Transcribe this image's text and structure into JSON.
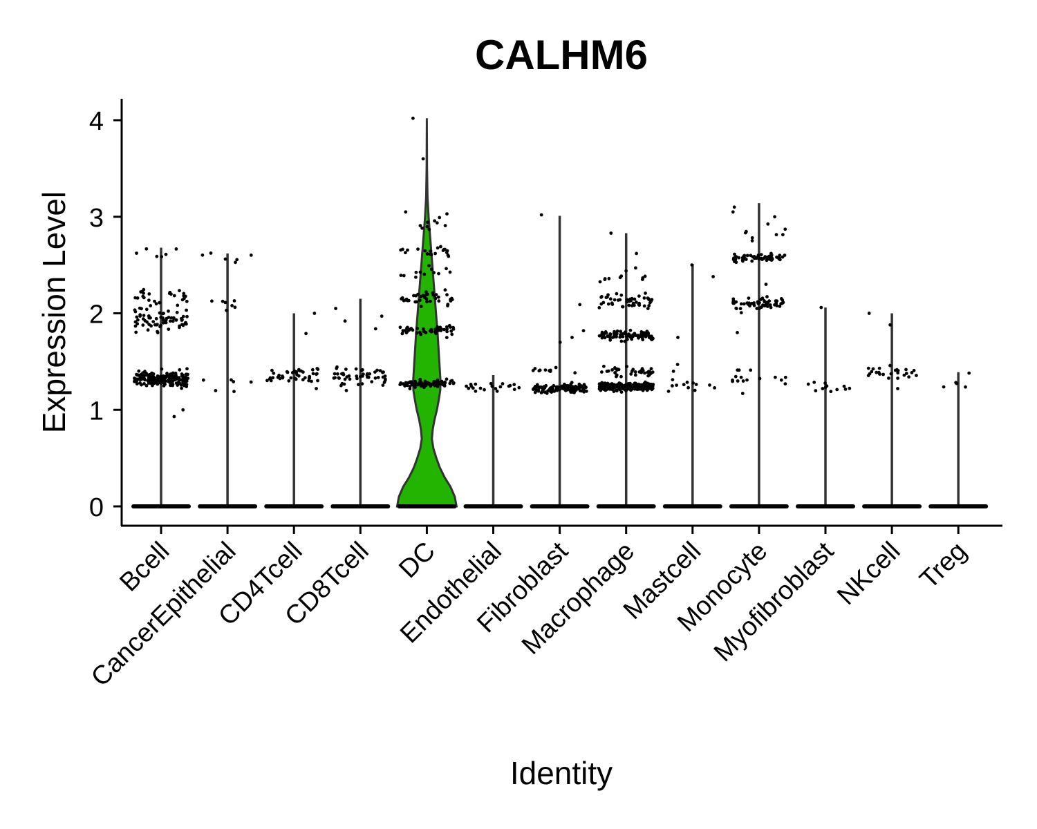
{
  "chart_data": {
    "type": "violin",
    "title": "CALHM6",
    "xlabel": "Identity",
    "ylabel": "Expression Level",
    "ylim": [
      -0.2,
      4.2
    ],
    "yticks": [
      0,
      1,
      2,
      3,
      4
    ],
    "legend": "none",
    "grid": false,
    "categories": [
      "Bcell",
      "CancerEpithelial",
      "CD4Tcell",
      "CD8Tcell",
      "DC",
      "Endothelial",
      "Fibroblast",
      "Macrophage",
      "Mastcell",
      "Monocyte",
      "Myofibroblast",
      "NKcell",
      "Treg"
    ],
    "series": [
      {
        "category": "Bcell",
        "max": 2.68,
        "fill": "#ffffff",
        "clusters": [
          {
            "center": 1.32,
            "spread": 0.08,
            "n": 200
          },
          {
            "center": 1.93,
            "spread": 0.12,
            "n": 70
          },
          {
            "center": 2.2,
            "spread": 0.1,
            "n": 25
          },
          {
            "center": 2.6,
            "spread": 0.08,
            "n": 6
          }
        ],
        "outliers": [
          1.0,
          0.93
        ]
      },
      {
        "category": "CancerEpithelial",
        "max": 2.62,
        "fill": "#ffffff",
        "clusters": [
          {
            "center": 1.3,
            "spread": 0.1,
            "n": 5
          },
          {
            "center": 2.12,
            "spread": 0.08,
            "n": 6
          },
          {
            "center": 2.58,
            "spread": 0.05,
            "n": 6
          }
        ],
        "outliers": [
          1.19,
          2.03
        ]
      },
      {
        "category": "CD4Tcell",
        "max": 2.0,
        "fill": "#ffffff",
        "clusters": [
          {
            "center": 1.35,
            "spread": 0.09,
            "n": 45
          }
        ],
        "outliers": [
          1.79,
          2.0
        ]
      },
      {
        "category": "CD8Tcell",
        "max": 2.15,
        "fill": "#ffffff",
        "clusters": [
          {
            "center": 1.35,
            "spread": 0.09,
            "n": 50
          }
        ],
        "outliers": [
          1.92,
          1.97,
          1.84,
          2.05
        ]
      },
      {
        "category": "DC",
        "max": 4.02,
        "fill": "#22b400",
        "clusters": [
          {
            "center": 1.27,
            "spread": 0.04,
            "n": 80
          },
          {
            "center": 1.82,
            "spread": 0.05,
            "n": 55
          },
          {
            "center": 2.15,
            "spread": 0.06,
            "n": 40
          },
          {
            "center": 2.42,
            "spread": 0.06,
            "n": 12
          },
          {
            "center": 2.65,
            "spread": 0.07,
            "n": 20
          },
          {
            "center": 2.93,
            "spread": 0.08,
            "n": 10
          }
        ],
        "outliers": [
          3.6,
          4.02,
          3.05
        ]
      },
      {
        "category": "Endothelial",
        "max": 1.36,
        "fill": "#ffffff",
        "clusters": [
          {
            "center": 1.23,
            "spread": 0.05,
            "n": 20
          }
        ],
        "outliers": []
      },
      {
        "category": "Fibroblast",
        "max": 3.01,
        "fill": "#ffffff",
        "clusters": [
          {
            "center": 1.22,
            "spread": 0.04,
            "n": 120
          },
          {
            "center": 1.4,
            "spread": 0.05,
            "n": 10
          }
        ],
        "outliers": [
          2.09,
          1.82,
          1.7,
          1.75,
          3.02
        ]
      },
      {
        "category": "Macrophage",
        "max": 2.83,
        "fill": "#ffffff",
        "clusters": [
          {
            "center": 1.24,
            "spread": 0.04,
            "n": 300
          },
          {
            "center": 1.4,
            "spread": 0.05,
            "n": 35
          },
          {
            "center": 1.77,
            "spread": 0.05,
            "n": 90
          },
          {
            "center": 2.12,
            "spread": 0.08,
            "n": 50
          },
          {
            "center": 2.38,
            "spread": 0.07,
            "n": 10
          }
        ],
        "outliers": [
          2.47,
          2.62,
          2.83
        ]
      },
      {
        "category": "Mastcell",
        "max": 2.51,
        "fill": "#ffffff",
        "clusters": [
          {
            "center": 1.25,
            "spread": 0.06,
            "n": 12
          }
        ],
        "outliers": [
          1.4,
          1.47,
          1.75,
          2.5,
          2.38
        ]
      },
      {
        "category": "Monocyte",
        "max": 3.14,
        "fill": "#ffffff",
        "clusters": [
          {
            "center": 1.33,
            "spread": 0.1,
            "n": 15
          },
          {
            "center": 2.1,
            "spread": 0.06,
            "n": 60
          },
          {
            "center": 2.57,
            "spread": 0.05,
            "n": 55
          },
          {
            "center": 2.85,
            "spread": 0.1,
            "n": 8
          }
        ],
        "outliers": [
          1.17,
          1.8,
          2.3,
          3.0,
          3.1,
          3.05
        ]
      },
      {
        "category": "Myofibroblast",
        "max": 2.06,
        "fill": "#ffffff",
        "clusters": [
          {
            "center": 1.24,
            "spread": 0.05,
            "n": 12
          }
        ],
        "outliers": [
          2.06
        ]
      },
      {
        "category": "NKcell",
        "max": 2.0,
        "fill": "#ffffff",
        "clusters": [
          {
            "center": 1.38,
            "spread": 0.06,
            "n": 25
          }
        ],
        "outliers": [
          1.88,
          2.0,
          1.22
        ]
      },
      {
        "category": "Treg",
        "max": 1.39,
        "fill": "#ffffff",
        "clusters": [
          {
            "center": 1.25,
            "spread": 0.06,
            "n": 4
          }
        ],
        "outliers": [
          1.38
        ]
      }
    ],
    "dc_violin_profile": [
      [
        0,
        0.5
      ],
      [
        0.1,
        0.47
      ],
      [
        0.2,
        0.4
      ],
      [
        0.3,
        0.3
      ],
      [
        0.4,
        0.22
      ],
      [
        0.5,
        0.16
      ],
      [
        0.6,
        0.11
      ],
      [
        0.7,
        0.085
      ],
      [
        0.8,
        0.1
      ],
      [
        0.9,
        0.13
      ],
      [
        1.0,
        0.17
      ],
      [
        1.1,
        0.2
      ],
      [
        1.2,
        0.225
      ],
      [
        1.3,
        0.23
      ],
      [
        1.4,
        0.22
      ],
      [
        1.6,
        0.2
      ],
      [
        1.8,
        0.18
      ],
      [
        2.0,
        0.155
      ],
      [
        2.2,
        0.13
      ],
      [
        2.4,
        0.105
      ],
      [
        2.6,
        0.08
      ],
      [
        2.8,
        0.055
      ],
      [
        3.0,
        0.03
      ],
      [
        3.2,
        0.012
      ],
      [
        3.5,
        0.004
      ],
      [
        4.02,
        0.0
      ]
    ]
  }
}
